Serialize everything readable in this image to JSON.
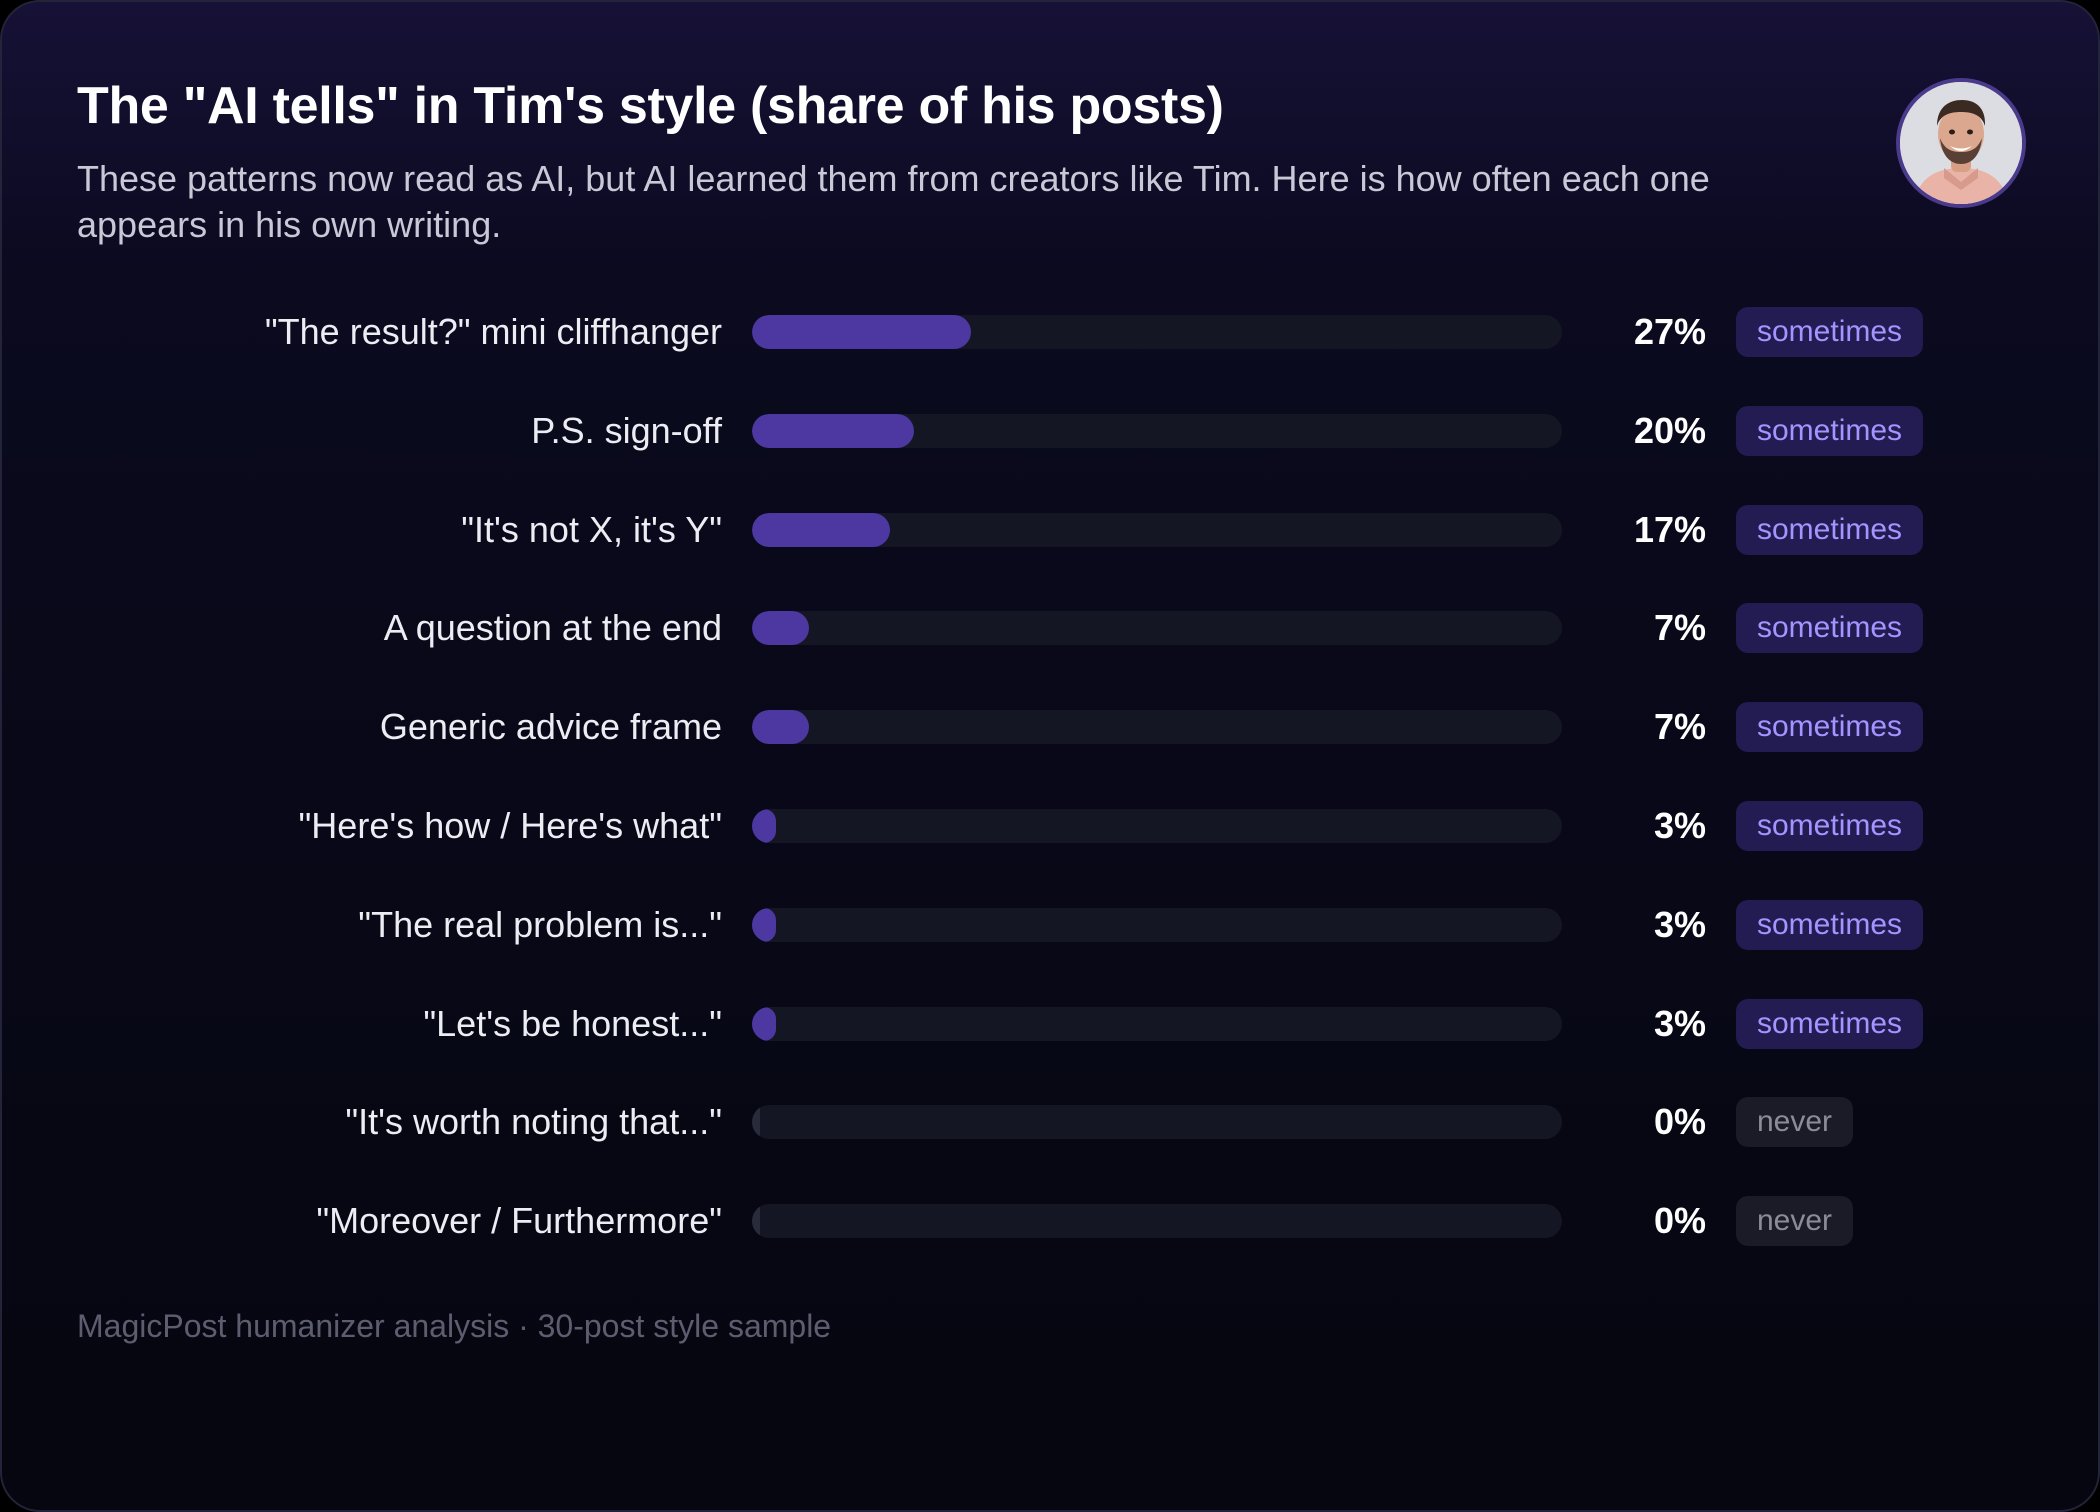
{
  "header": {
    "title": "The \"AI tells\" in Tim's style (share of his posts)",
    "subtitle": "These patterns now read as AI, but AI learned them from creators like Tim. Here is how often each one appears in his own writing."
  },
  "avatar": {
    "icon": "person-avatar-icon"
  },
  "colors": {
    "background": "#05060f",
    "bar_fill": "#4c38a0",
    "bar_track": "#151623",
    "badge_sometimes_bg": "#221c52",
    "badge_sometimes_text": "#a593ff",
    "badge_never_bg": "#1a1b26",
    "badge_never_text": "#8b8c99"
  },
  "chart_data": {
    "type": "bar",
    "orientation": "horizontal",
    "categories": [
      "\"The result?\" mini cliffhanger",
      "P.S. sign-off",
      "\"It's not X, it's Y\"",
      "A question at the end",
      "Generic advice frame",
      "\"Here's how / Here's what\"",
      "\"The real problem is...\"",
      "\"Let's be honest...\"",
      "\"It's worth noting that...\"",
      "\"Moreover / Furthermore\""
    ],
    "values": [
      27,
      20,
      17,
      7,
      7,
      3,
      3,
      3,
      0,
      0
    ],
    "value_labels": [
      "27%",
      "20%",
      "17%",
      "7%",
      "7%",
      "3%",
      "3%",
      "3%",
      "0%",
      "0%"
    ],
    "frequency_labels": [
      "sometimes",
      "sometimes",
      "sometimes",
      "sometimes",
      "sometimes",
      "sometimes",
      "sometimes",
      "sometimes",
      "never",
      "never"
    ],
    "xlim": [
      0,
      100
    ],
    "unit": "%",
    "grid": false,
    "legend": "none"
  },
  "footer": {
    "source": "MagicPost humanizer analysis · 30-post style sample"
  }
}
